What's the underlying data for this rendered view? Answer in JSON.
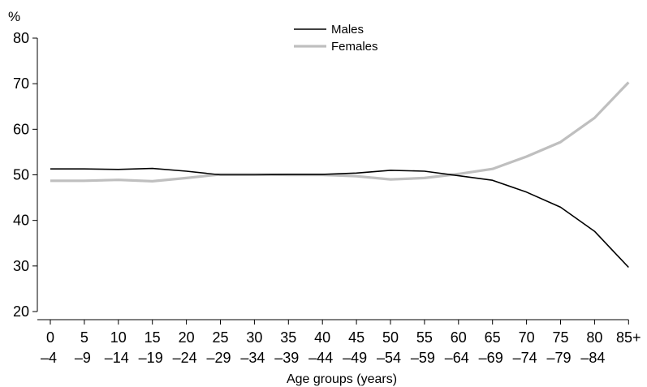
{
  "chart_data": {
    "type": "line",
    "title": "",
    "y_unit": "%",
    "xlabel": "Age groups (years)",
    "ylabel": "",
    "ylim": [
      20,
      80
    ],
    "yticks": [
      20,
      30,
      40,
      50,
      60,
      70,
      80
    ],
    "grid": false,
    "legend_position": "top-center",
    "categories": [
      {
        "top": "0",
        "bottom": "–4"
      },
      {
        "top": "5",
        "bottom": "–9"
      },
      {
        "top": "10",
        "bottom": "–14"
      },
      {
        "top": "15",
        "bottom": "–19"
      },
      {
        "top": "20",
        "bottom": "–24"
      },
      {
        "top": "25",
        "bottom": "–29"
      },
      {
        "top": "30",
        "bottom": "–34"
      },
      {
        "top": "35",
        "bottom": "–39"
      },
      {
        "top": "40",
        "bottom": "–44"
      },
      {
        "top": "45",
        "bottom": "–49"
      },
      {
        "top": "50",
        "bottom": "–54"
      },
      {
        "top": "55",
        "bottom": "–59"
      },
      {
        "top": "60",
        "bottom": "–64"
      },
      {
        "top": "65",
        "bottom": "–69"
      },
      {
        "top": "70",
        "bottom": "–74"
      },
      {
        "top": "75",
        "bottom": "–79"
      },
      {
        "top": "80",
        "bottom": "–84"
      },
      {
        "top": "85+",
        "bottom": ""
      }
    ],
    "series": [
      {
        "name": "Males",
        "color": "#000000",
        "values": [
          51.3,
          51.3,
          51.2,
          51.4,
          50.8,
          50.0,
          50.0,
          50.1,
          50.1,
          50.4,
          51.0,
          50.8,
          49.8,
          48.8,
          46.2,
          42.9,
          37.6,
          29.7
        ]
      },
      {
        "name": "Females",
        "color": "#bfbfbf",
        "values": [
          48.7,
          48.7,
          48.9,
          48.6,
          49.3,
          50.1,
          50.1,
          50.0,
          50.0,
          49.7,
          49.0,
          49.3,
          50.2,
          51.3,
          54.0,
          57.2,
          62.5,
          70.3
        ]
      }
    ]
  }
}
